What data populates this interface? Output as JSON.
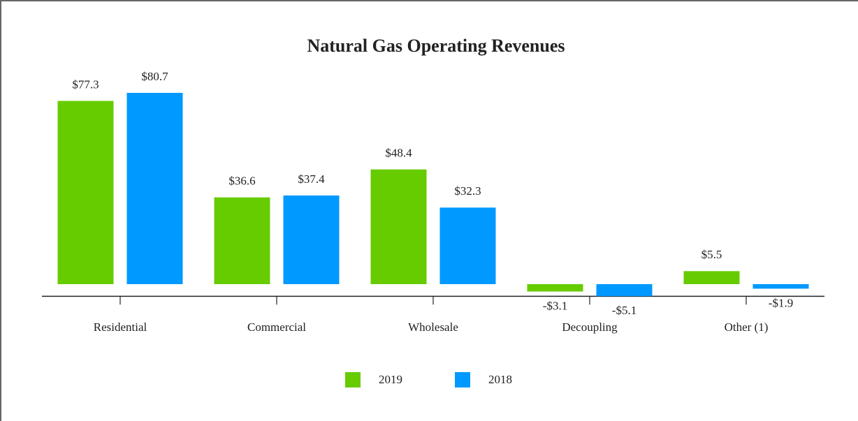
{
  "chart_data": {
    "type": "bar",
    "title": "Natural Gas Operating Revenues",
    "categories": [
      "Residential",
      "Commercial",
      "Wholesale",
      "Decoupling",
      "Other (1)"
    ],
    "series": [
      {
        "name": "2019",
        "color": "#66cc00",
        "values": [
          77.3,
          36.6,
          48.4,
          -3.1,
          5.5
        ],
        "value_labels": [
          "$77.3",
          "$36.6",
          "$48.4",
          "-$3.1",
          "$5.5"
        ]
      },
      {
        "name": "2018",
        "color": "#0099ff",
        "values": [
          80.7,
          37.4,
          32.3,
          -5.1,
          -1.9
        ],
        "value_labels": [
          "$80.7",
          "$37.4",
          "$32.3",
          "-$5.1",
          "-$1.9"
        ]
      }
    ],
    "legend": "bottom"
  }
}
